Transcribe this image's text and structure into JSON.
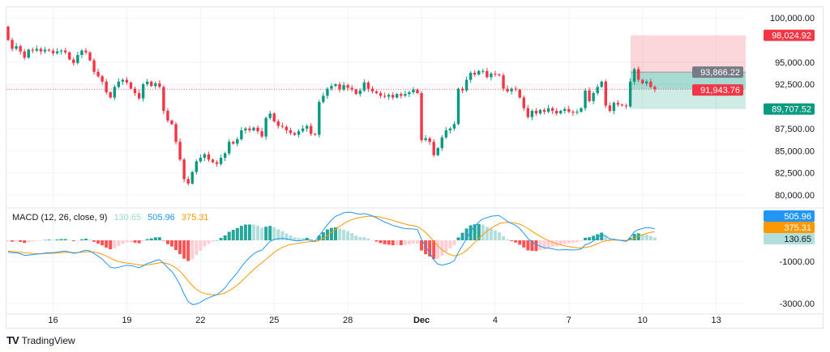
{
  "chart_data": {
    "type": "candlestick",
    "interval_note": "",
    "price_axis": {
      "ticks": [
        "100,000.00",
        "95,000.00",
        "92,500.00",
        "87,500.00",
        "85,000.00",
        "82,500.00",
        "80,000.00"
      ],
      "tick_values": [
        100000,
        95000,
        92500,
        87500,
        85000,
        82500,
        80000
      ],
      "range": [
        79000,
        101500
      ]
    },
    "time_axis": {
      "ticks": [
        "16",
        "19",
        "22",
        "25",
        "28",
        "Dec",
        "4",
        "7",
        "10",
        "13"
      ]
    },
    "first_open": 99000,
    "closes": [
      97500,
      96500,
      96800,
      96200,
      95500,
      96400,
      96300,
      96500,
      96200,
      96400,
      96300,
      96000,
      96200,
      96300,
      96100,
      95300,
      94900,
      95800,
      96300,
      96100,
      95200,
      93900,
      93400,
      92800,
      91600,
      91000,
      92200,
      92800,
      93000,
      92700,
      92000,
      91500,
      90900,
      92500,
      92800,
      92300,
      92600,
      92200,
      89500,
      88400,
      88000,
      86000,
      84000,
      81800,
      81300,
      82600,
      83800,
      84200,
      84600,
      84000,
      83700,
      83500,
      84200,
      84700,
      86000,
      85800,
      86300,
      87300,
      87500,
      87300,
      87600,
      87200,
      86600,
      88700,
      89200,
      88300,
      87800,
      87700,
      87300,
      87000,
      86800,
      87200,
      87500,
      87800,
      86900,
      86800,
      90500,
      91200,
      92000,
      92300,
      92500,
      91900,
      92400,
      92100,
      91900,
      91400,
      91800,
      92700,
      92000,
      91700,
      91500,
      91200,
      91100,
      91300,
      91000,
      91400,
      91200,
      91400,
      91600,
      91900,
      91500,
      86200,
      86400,
      86000,
      84500,
      85300,
      86500,
      87300,
      87500,
      88000,
      92000,
      91800,
      93000,
      93800,
      93600,
      94000,
      94000,
      93300,
      93700,
      93600,
      93500,
      92000,
      91700,
      92000,
      91900,
      91000,
      89800,
      88800,
      89500,
      89200,
      89600,
      89400,
      89800,
      89500,
      89200,
      89500,
      89700,
      89400,
      89300,
      89400,
      89800,
      91800,
      90600,
      91500,
      92200,
      92800,
      90100,
      89500,
      90400,
      90200,
      90100,
      90000,
      92800,
      94200,
      93000,
      92600,
      92800,
      92200,
      91943.76
    ],
    "current_price": {
      "value": 91943.76,
      "label": "91,943.76",
      "color": "#f23645"
    },
    "position": {
      "stop_loss": {
        "value": 98024.92,
        "label": "98,024.92",
        "color": "#f23645"
      },
      "entry": {
        "value": 93866.22,
        "label": "93,866.22",
        "color": "#787b86"
      },
      "take_profit": {
        "value": 89707.52,
        "label": "89,707.52",
        "color": "#089981"
      }
    },
    "macd": {
      "title": "MACD (12, 26, close, 9)",
      "histogram_value": "130.65",
      "macd_value": "505.96",
      "signal_value": "375.31",
      "axis_ticks": [
        "-1000.00",
        "-3000.00"
      ],
      "axis_tick_values": [
        -1000,
        -3000
      ],
      "colors": {
        "macd": "#2196f3",
        "signal": "#ff9800",
        "hist_up_strong": "#26a69a",
        "hist_up_weak": "#b2dfdb",
        "hist_down_strong": "#ff5252",
        "hist_down_weak": "#ffcdd2",
        "histogram_label_bg": "#b2dfdb"
      }
    },
    "colors": {
      "up": "#089981",
      "down": "#f23645"
    },
    "grid": true
  },
  "brand": {
    "name": "TradingView"
  }
}
